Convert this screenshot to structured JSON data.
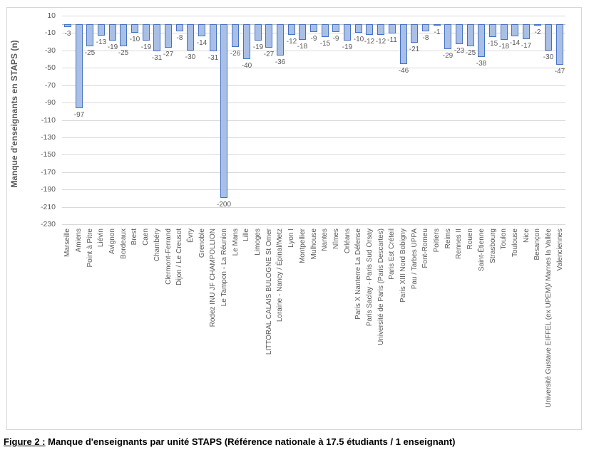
{
  "figure": {
    "caption_prefix": "Figure 2 :",
    "caption_text": " Manque d'enseignants par unité STAPS (Référence nationale à 17.5 étudiants / 1 enseignant)"
  },
  "chart_data": {
    "type": "bar",
    "title": "",
    "xlabel": "",
    "ylabel": "Manque d'enseignants en STAPS (n)",
    "ylim": [
      -230,
      10
    ],
    "yticks": [
      10,
      -10,
      -30,
      -50,
      -70,
      -90,
      -110,
      -130,
      -150,
      -170,
      -190,
      -210,
      -230
    ],
    "grid": true,
    "legend": "none",
    "bar_fill_color": "#a9bfe5",
    "bar_border_color": "#4472c4",
    "label_color": "#595959",
    "gridline_color": "#d9d9d9",
    "axis_line_color": "#bfbfbf",
    "categories": [
      "Marseille",
      "Amiens",
      "Point à Pitre",
      "Liévin",
      "Avignon",
      "Bordeaux",
      "Brest",
      "Caen",
      "Chambéry",
      "Clermont-Ferrand",
      "Dijon / Le Creusot",
      "Évry",
      "Grenoble",
      "Rodez INU JF CHAMPOLLION",
      "Le Tampon - La Réunion",
      "Le Mans",
      "Lille",
      "Limoges",
      "LITTORAL CALAIS BULOGNE St Omer",
      "Loraine - Nancy / Épinal/Metz",
      "Lyon I",
      "Montpellier",
      "Mulhouse",
      "Nantes",
      "Nîmes",
      "Orléans",
      "Paris X Nanterre La Défense",
      "Paris Saclay - Paris Sud Orsay",
      "Université de Paris (Paris Descartes)",
      "Paris Est Créteil",
      "Paris XIII Nord Bobigny",
      "Pau / Tarbes UPPA",
      "Font-Romeu",
      "Poitiers",
      "Reims",
      "Rennes II",
      "Rouen",
      "Saint-Étienne",
      "Strasbourg",
      "Toulon",
      "Toulouse",
      "Nice",
      "Besançon",
      "Université Gustave EIFFEL (ex UPEM)/ Marnes la Vallée",
      "Valenciennes"
    ],
    "values": [
      -3,
      -97,
      -25,
      -13,
      -19,
      -25,
      -10,
      -19,
      -31,
      -27,
      -8,
      -30,
      -14,
      -31,
      -200,
      -26,
      -40,
      -19,
      -27,
      -36,
      -12,
      -18,
      -9,
      -15,
      -9,
      -19,
      -10,
      -12,
      -12,
      -11,
      -46,
      -21,
      -8,
      -1,
      -29,
      -23,
      -25,
      -38,
      -15,
      -18,
      -14,
      -17,
      -2,
      -30,
      -47
    ]
  }
}
